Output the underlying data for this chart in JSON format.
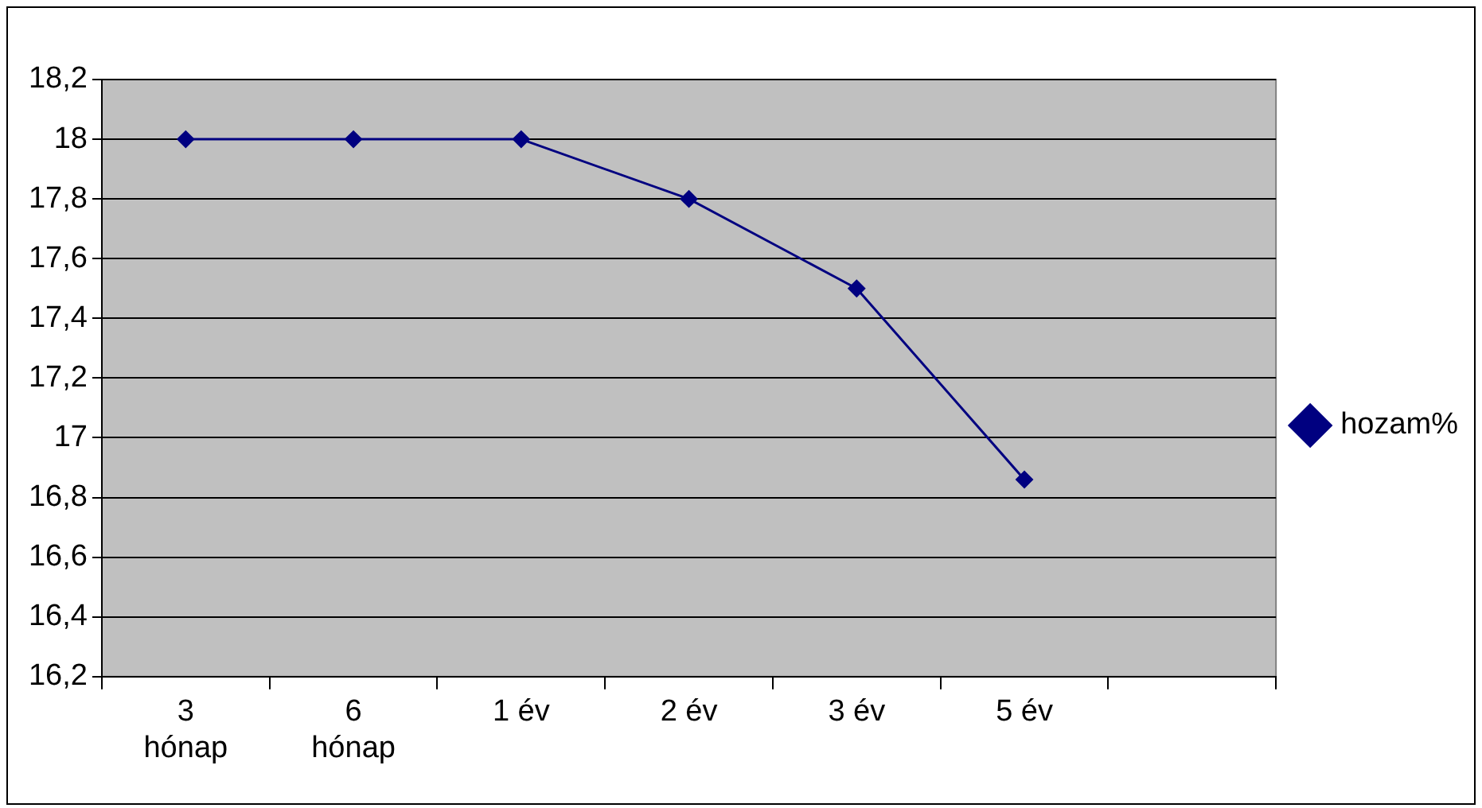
{
  "chart_data": {
    "type": "line",
    "categories": [
      "3\nhónap",
      "6\nhónap",
      "1 év",
      "2 év",
      "3 év",
      "5 év",
      null
    ],
    "series": [
      {
        "name": "hozam%",
        "color": "#000080",
        "values": [
          18,
          18,
          18,
          17.8,
          17.5,
          16.86,
          null
        ]
      }
    ],
    "ylim": [
      16.2,
      18.2
    ],
    "yticks": [
      {
        "value": 16.2,
        "label": "16,2"
      },
      {
        "value": 16.4,
        "label": "16,4"
      },
      {
        "value": 16.6,
        "label": "16,6"
      },
      {
        "value": 16.8,
        "label": "16,8"
      },
      {
        "value": 17,
        "label": "17"
      },
      {
        "value": 17.2,
        "label": "17,2"
      },
      {
        "value": 17.4,
        "label": "17,4"
      },
      {
        "value": 17.6,
        "label": "17,6"
      },
      {
        "value": 17.8,
        "label": "17,8"
      },
      {
        "value": 18,
        "label": "18"
      },
      {
        "value": 18.2,
        "label": "18,2"
      }
    ],
    "grid": "y",
    "legend": "right",
    "marker": "diamond",
    "line_style": "solid"
  }
}
